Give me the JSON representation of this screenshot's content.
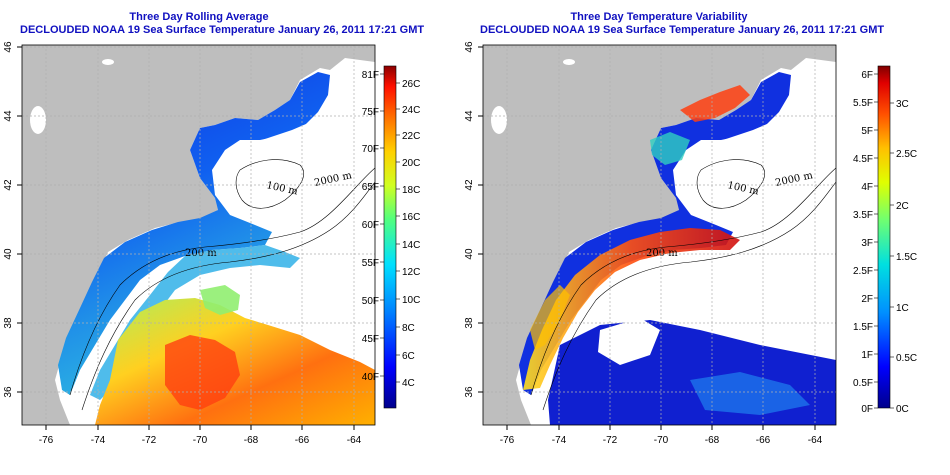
{
  "panels": [
    {
      "title": "Three Day Rolling Average",
      "subtitle": "DECLOUDED NOAA 19 Sea Surface Temperature January 26, 2011 17:21 GMT",
      "colorbar_left_labels": [
        "81F",
        "75F",
        "70F",
        "65F",
        "60F",
        "55F",
        "50F",
        "45F",
        "40F"
      ],
      "colorbar_right_labels": [
        "26C",
        "24C",
        "22C",
        "20C",
        "18C",
        "16C",
        "14C",
        "12C",
        "10C",
        "8C",
        "6C",
        "4C"
      ]
    },
    {
      "title": "Three Day Temperature Variability",
      "subtitle": "DECLOUDED NOAA 19 Sea Surface Temperature January 26, 2011 17:21 GMT",
      "colorbar_left_labels": [
        "6F",
        "5.5F",
        "5F",
        "4.5F",
        "4F",
        "3.5F",
        "3F",
        "2.5F",
        "2F",
        "1.5F",
        "1F",
        "0.5F",
        "0F"
      ],
      "colorbar_right_labels": [
        "3C",
        "2.5C",
        "2C",
        "1.5C",
        "1C",
        "0.5C",
        "0C"
      ]
    }
  ],
  "axes": {
    "lon_ticks": [
      "-76",
      "-74",
      "-72",
      "-70",
      "-68",
      "-66",
      "-64"
    ],
    "lat_ticks": [
      "46",
      "44",
      "42",
      "40",
      "38",
      "36"
    ]
  },
  "contour_labels": {
    "c2000": "2000 m",
    "c100": "100 m",
    "c200": "200 m"
  },
  "colors": {
    "title": "#1010c0",
    "land": "#bebebe",
    "no_data": "#ffffff"
  }
}
